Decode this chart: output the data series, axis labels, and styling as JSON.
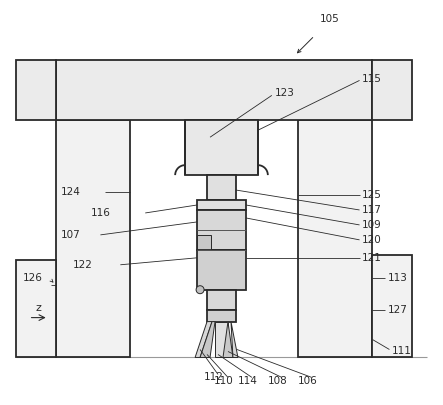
{
  "bg_color": "#ffffff",
  "line_color": "#2a2a2a",
  "lw_main": 1.3,
  "lw_thin": 0.7,
  "lw_label": 0.6,
  "font_size": 7.5
}
